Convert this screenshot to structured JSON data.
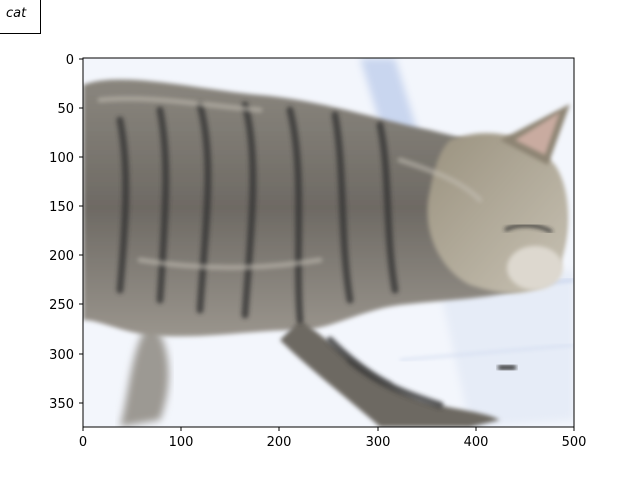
{
  "figure": {
    "label": "cat",
    "image_description": "A tabby cat walking to the right in front of a bright window, with motion blur",
    "axes": {
      "x_ticks": [
        "0",
        "100",
        "200",
        "300",
        "400",
        "500"
      ],
      "y_ticks": [
        "0",
        "50",
        "100",
        "150",
        "200",
        "250",
        "300",
        "350"
      ]
    },
    "colors": {
      "fur_dark": "#2f2f2f",
      "fur_mid": "#77726a",
      "fur_light": "#b0a999",
      "background": "#eef3fb",
      "window_blue": "#cfdaf0"
    }
  }
}
